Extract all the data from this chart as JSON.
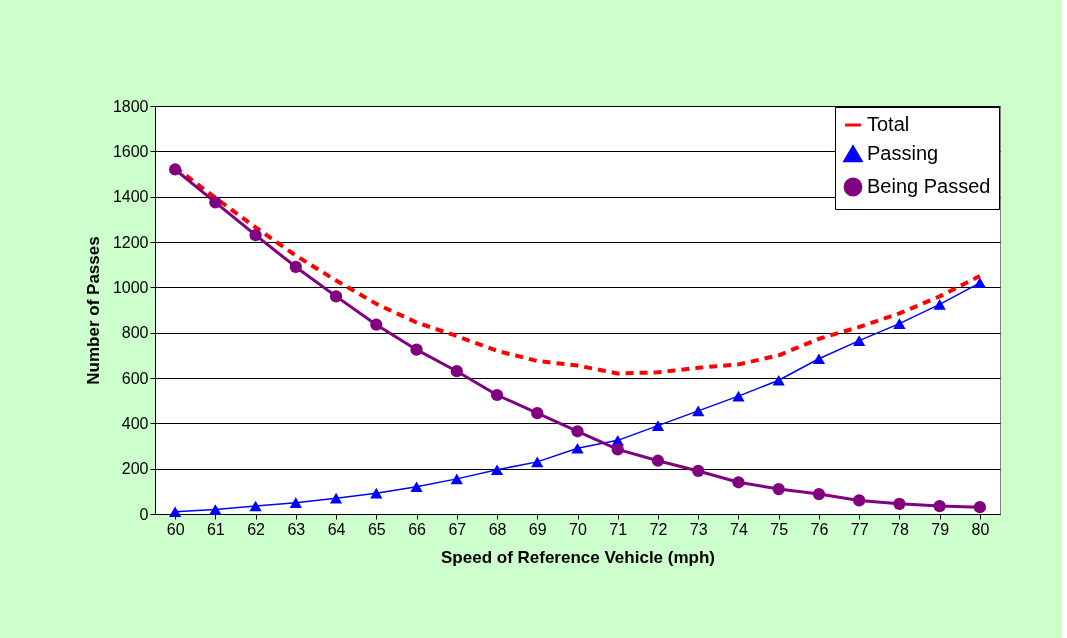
{
  "chart_data": {
    "type": "line",
    "xlabel": "Speed of Reference Vehicle (mph)",
    "ylabel": "Number of Passes",
    "categories": [
      "60",
      "61",
      "62",
      "63",
      "64",
      "65",
      "66",
      "67",
      "68",
      "69",
      "70",
      "71",
      "72",
      "73",
      "74",
      "75",
      "76",
      "77",
      "78",
      "79",
      "80"
    ],
    "series": [
      {
        "name": "Total",
        "color": "#ff0000",
        "line_style": "dashed",
        "marker": "none",
        "values": [
          1530,
          1395,
          1265,
          1140,
          1030,
          927,
          845,
          785,
          720,
          675,
          655,
          620,
          625,
          645,
          660,
          700,
          773,
          825,
          885,
          960,
          1050
        ]
      },
      {
        "name": "Passing",
        "color": "#0000ff",
        "line_style": "solid",
        "marker": "triangle",
        "values": [
          10,
          20,
          35,
          50,
          70,
          92,
          120,
          155,
          195,
          230,
          290,
          325,
          390,
          455,
          520,
          590,
          685,
          765,
          840,
          925,
          1020
        ]
      },
      {
        "name": "Being Passed",
        "color": "#800080",
        "line_style": "solid",
        "marker": "circle",
        "values": [
          1520,
          1375,
          1230,
          1090,
          960,
          835,
          725,
          630,
          525,
          445,
          365,
          285,
          235,
          190,
          140,
          110,
          88,
          60,
          45,
          35,
          30
        ]
      }
    ],
    "ylim": [
      0,
      1800
    ],
    "yticks": [
      0,
      200,
      400,
      600,
      800,
      1000,
      1200,
      1400,
      1600,
      1800
    ],
    "grid": "y",
    "legend": "top right"
  }
}
